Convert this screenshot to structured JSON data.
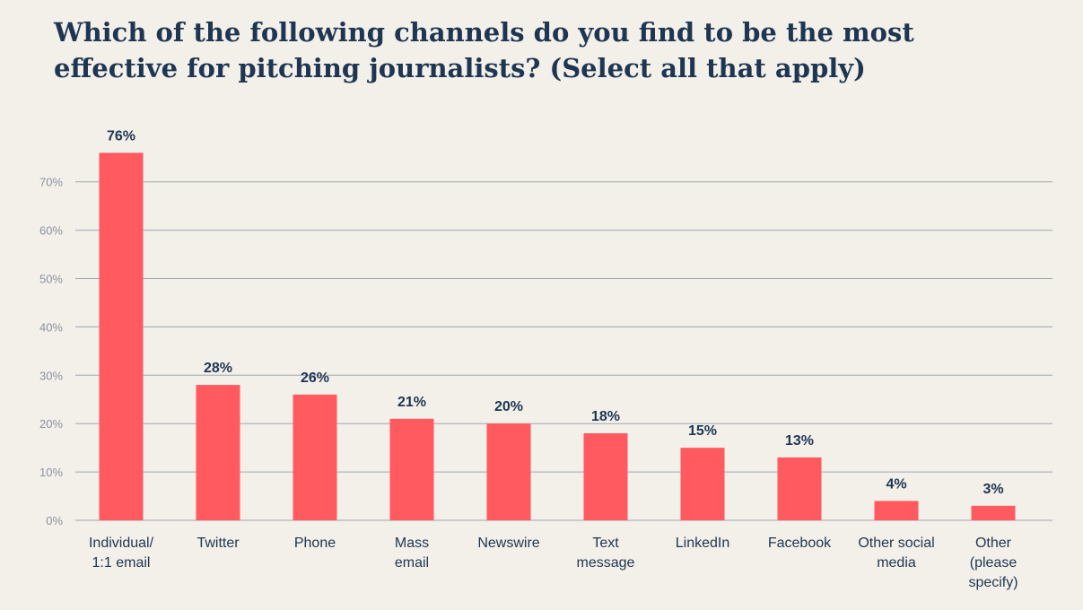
{
  "chart_data": {
    "type": "bar",
    "title_lines": [
      "Which of the following channels do you find to be the most",
      "effective for pitching journalists? (Select all that apply)"
    ],
    "categories": [
      [
        "Individual/",
        "1:1 email"
      ],
      [
        "Twitter"
      ],
      [
        "Phone"
      ],
      [
        "Mass",
        "email"
      ],
      [
        "Newswire"
      ],
      [
        "Text",
        "message"
      ],
      [
        "LinkedIn"
      ],
      [
        "Facebook"
      ],
      [
        "Other social",
        "media"
      ],
      [
        "Other",
        "(please",
        "specify)"
      ]
    ],
    "values": [
      76,
      28,
      26,
      21,
      20,
      18,
      15,
      13,
      4,
      3
    ],
    "value_labels": [
      "76%",
      "28%",
      "26%",
      "21%",
      "20%",
      "18%",
      "15%",
      "13%",
      "4%",
      "3%"
    ],
    "y_ticks": [
      0,
      10,
      20,
      30,
      40,
      50,
      60,
      70
    ],
    "y_tick_labels": [
      "0%",
      "10%",
      "20%",
      "30%",
      "40%",
      "50%",
      "60%",
      "70%"
    ],
    "ylim": [
      0,
      70
    ],
    "grid": true,
    "bar_color": "#ff5a5f",
    "grid_color": "#9ea7b3",
    "text_color": "#1e3652"
  }
}
